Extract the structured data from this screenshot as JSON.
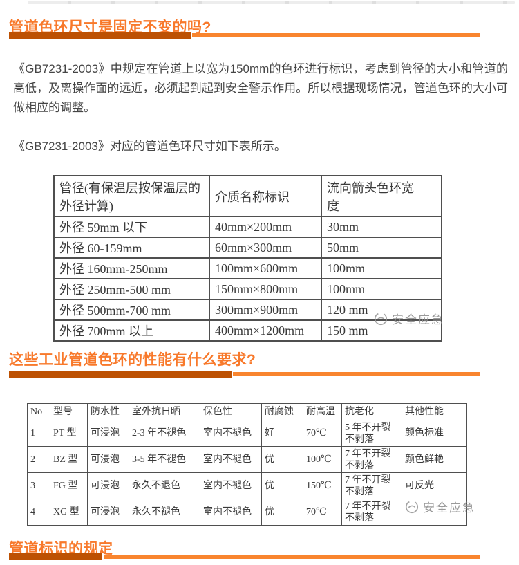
{
  "theme": {
    "heading_color": "#f8792b",
    "bar_dark_color": "#bd5103",
    "bar_light_color": "#f9852e"
  },
  "sections": [
    {
      "heading": "管道色环尺寸是固定不变的吗?"
    },
    {
      "heading": "这些工业管道色环的性能有什么要求?"
    },
    {
      "heading": "管道标识的规定"
    }
  ],
  "paragraphs": [
    "《GB7231-2003》中规定在管道上以宽为150mm的色环进行标识，考虑到管径的大小和管道的高低，及离操作面的远近，必须起到起到安全警示作用。所以根据现场情况，管道色环的大小可做相应的调整。",
    "《GB7231-2003》对应的管道色环尺寸如下表所示。"
  ],
  "tables": [
    {
      "headers": [
        "管径(有保温层按保温层的外径计算)",
        "介质名称标识",
        "流向箭头色环宽度"
      ],
      "rows": [
        [
          "外径 59mm 以下",
          "40mm×200mm",
          "30mm"
        ],
        [
          "外径 60-159mm",
          "60mm×300mm",
          "50mm"
        ],
        [
          "外径 160mm-250mm",
          "100mm×600mm",
          "100mm"
        ],
        [
          "外径 250mm-500 mm",
          "150mm×800mm",
          "100mm"
        ],
        [
          "外径 500mm-700 mm",
          "300mm×900mm",
          "120 mm"
        ],
        [
          "外径 700mm 以上",
          "400mm×1200mm",
          "150 mm"
        ]
      ]
    },
    {
      "headers": [
        "No",
        "型号",
        "防水性",
        "室外抗日晒",
        "保色性",
        "耐腐蚀",
        "耐高温",
        "抗老化",
        "其他性能"
      ],
      "rows": [
        [
          "1",
          "PT 型",
          "可浸泡",
          "2-3 年不褪色",
          "室内不褪色",
          "好",
          "70℃",
          "5 年不开裂不剥落",
          "颜色标准"
        ],
        [
          "2",
          "BZ 型",
          "可浸泡",
          "3-5 年不褪色",
          "室内不褪色",
          "优",
          "100℃",
          "7 年不开裂不剥落",
          "颜色鲜艳"
        ],
        [
          "3",
          "FG 型",
          "可浸泡",
          "永久不退色",
          "室内不褪色",
          "优",
          "150℃",
          "7 年不开裂不剥落",
          "可反光"
        ],
        [
          "4",
          "XG 型",
          "可浸泡",
          "永久不褪色",
          "室内不褪色",
          "优",
          "70℃",
          "7 年不开裂不剥落",
          ""
        ]
      ]
    }
  ],
  "watermark": {
    "label": "安全应急"
  }
}
